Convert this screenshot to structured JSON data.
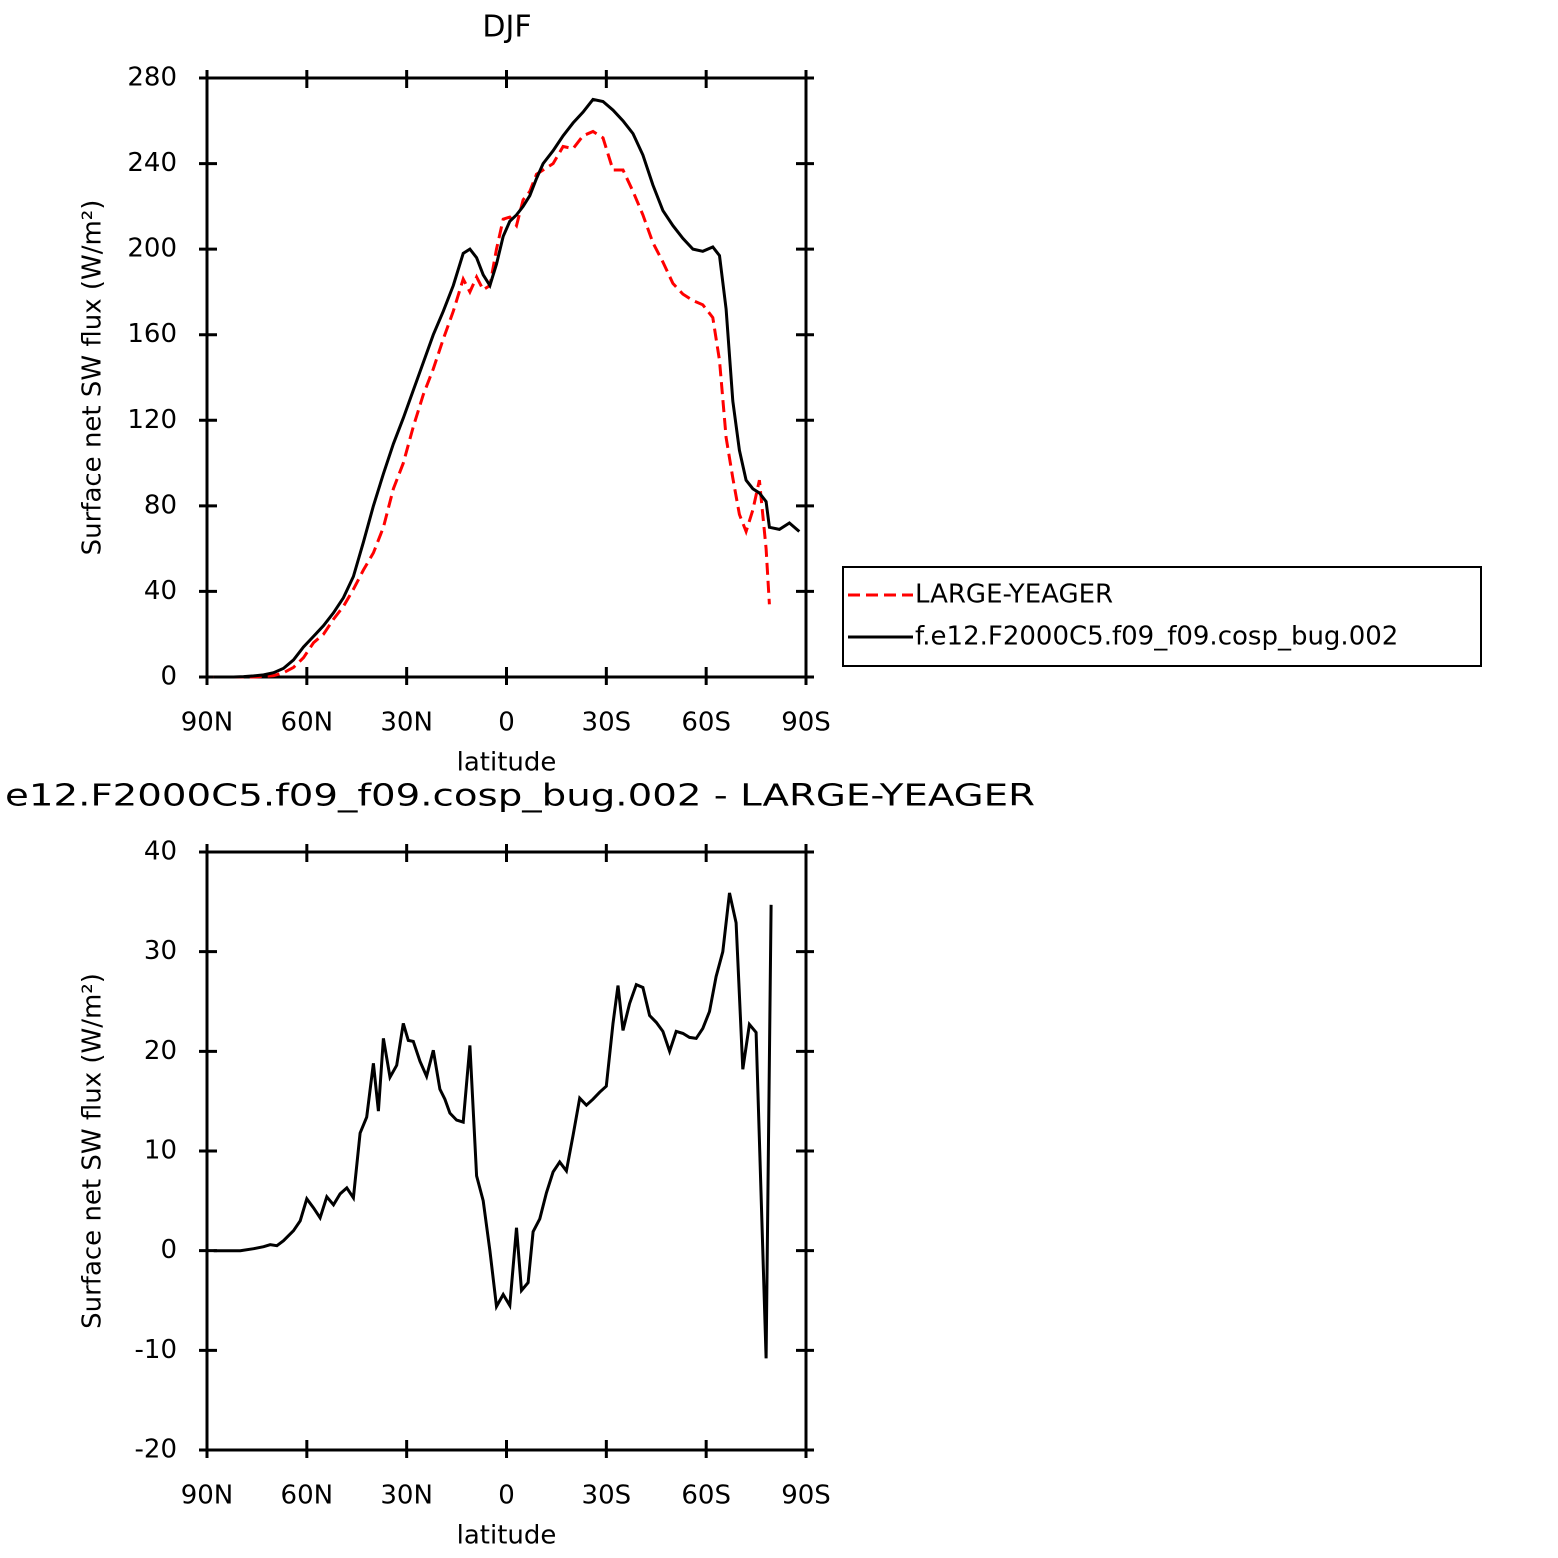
{
  "chart_data": [
    {
      "type": "line",
      "title": "DJF",
      "xlabel": "latitude",
      "ylabel": "Surface net SW flux (W/m²)",
      "x": [
        88,
        85,
        82,
        79,
        76,
        73,
        70,
        67,
        64,
        61,
        58,
        55,
        52,
        49,
        46,
        43,
        40,
        37,
        34,
        31,
        28,
        25,
        22,
        19,
        16,
        13,
        11,
        9,
        7,
        5,
        3,
        1,
        -1,
        -3,
        -5,
        -7,
        -9,
        -11,
        -14,
        -17,
        -20,
        -23,
        -26,
        -29,
        -32,
        -35,
        -38,
        -41,
        -44,
        -47,
        -50,
        -53,
        -56,
        -59,
        -62,
        -64,
        -66,
        -68,
        -70,
        -72,
        -74,
        -76,
        -78,
        -79,
        -82,
        -85,
        -88
      ],
      "series": [
        {
          "name": "LARGE-YEAGER",
          "color": "#ff0000",
          "style": "dashed",
          "values": [
            0,
            0,
            0,
            0,
            0,
            0.3,
            0.6,
            2,
            4.5,
            9,
            16,
            20,
            27,
            33,
            41,
            50,
            58,
            70,
            88,
            100,
            117,
            132,
            144,
            158,
            171,
            186,
            180,
            187,
            181,
            183,
            200,
            214,
            215,
            211,
            223,
            227,
            235,
            237,
            240,
            248,
            247,
            253,
            255,
            252,
            237,
            237,
            227,
            216,
            203,
            194,
            184,
            179,
            176,
            174,
            168,
            148,
            112,
            93,
            76,
            68,
            78,
            92,
            60,
            34,
            null,
            null,
            null
          ]
        },
        {
          "name": "f.e12.F2000C5.f09_f09.cosp_bug.002",
          "color": "#000000",
          "style": "solid",
          "values": [
            0,
            0,
            0,
            0.2,
            0.5,
            1,
            2,
            4,
            8,
            14,
            19,
            24,
            30,
            37,
            47,
            63,
            80,
            95,
            109,
            121,
            134,
            147,
            160,
            171,
            183,
            198,
            200,
            196,
            188,
            183,
            193,
            206,
            213,
            216,
            220,
            225,
            233,
            240,
            246,
            253,
            259,
            264,
            270,
            269,
            265,
            260,
            254,
            244,
            230,
            218,
            211,
            205,
            200,
            199,
            201,
            197,
            172,
            129,
            106,
            92,
            88,
            86,
            82,
            70,
            69,
            72,
            68
          ]
        }
      ],
      "xlim": [
        90,
        -90
      ],
      "xticks": [
        {
          "value": 90,
          "label": "90N"
        },
        {
          "value": 60,
          "label": "60N"
        },
        {
          "value": 30,
          "label": "30N"
        },
        0,
        {
          "value": -30,
          "label": "30S"
        },
        {
          "value": -60,
          "label": "60S"
        },
        {
          "value": -90,
          "label": "90S"
        }
      ],
      "ylim": [
        0,
        280
      ],
      "yticks": [
        0,
        40,
        80,
        120,
        160,
        200,
        240,
        280
      ],
      "legend": "right"
    },
    {
      "type": "line",
      "title": "e12.F2000C5.f09_f09.cosp_bug.002 - LARGE-YEAGER",
      "xlabel": "latitude",
      "ylabel": "Surface net SW flux (W/m²)",
      "x": [
        88,
        80,
        76,
        73,
        71,
        69,
        67,
        64,
        62,
        60,
        58,
        56,
        54,
        52,
        50,
        48,
        46,
        44,
        42,
        40,
        38.5,
        37,
        35,
        33,
        31,
        29.5,
        28,
        26,
        24,
        22,
        20,
        18.5,
        17,
        15,
        13,
        11,
        9,
        7,
        5,
        3,
        1,
        -1,
        -3,
        -4.5,
        -6.5,
        -8,
        -10,
        -12,
        -14,
        -16,
        -18,
        -20,
        -22,
        -24,
        -26,
        -28,
        -30,
        -32,
        -33.5,
        -35,
        -37,
        -39,
        -41,
        -43,
        -45,
        -47,
        -49,
        -51,
        -53,
        -55,
        -57,
        -59,
        -61,
        -63,
        -65,
        -67,
        -69,
        -71,
        -73,
        -75,
        -78,
        -79.5
      ],
      "color": "#000000",
      "values": [
        0,
        0,
        0.2,
        0.4,
        0.6,
        0.5,
        1,
        2,
        3,
        5.2,
        4.3,
        3.3,
        5.4,
        4.6,
        5.7,
        6.3,
        5.3,
        11.8,
        13.4,
        18.8,
        14,
        21.3,
        17.4,
        18.6,
        22.8,
        21.1,
        21,
        19,
        17.5,
        20.1,
        16.2,
        15.2,
        13.8,
        13.1,
        12.9,
        20.6,
        7.5,
        5,
        0,
        -5.6,
        -4.4,
        -5.5,
        2.3,
        -4,
        -3.2,
        1.9,
        3.2,
        5.8,
        7.9,
        8.9,
        8,
        11.6,
        15.3,
        14.6,
        15.2,
        15.9,
        16.5,
        22.8,
        26.6,
        22.1,
        24.8,
        26.7,
        26.4,
        23.6,
        22.9,
        22,
        20,
        22,
        21.8,
        21.4,
        21.3,
        22.3,
        24,
        27.5,
        30,
        35.9,
        32.9,
        18.2,
        22.7,
        21.9,
        -10.8,
        34.7
      ],
      "xlim": [
        90,
        -90
      ],
      "xticks": [
        {
          "value": 90,
          "label": "90N"
        },
        {
          "value": 60,
          "label": "60N"
        },
        {
          "value": 30,
          "label": "30N"
        },
        0,
        {
          "value": -30,
          "label": "30S"
        },
        {
          "value": -60,
          "label": "60S"
        },
        {
          "value": -90,
          "label": "90S"
        }
      ],
      "ylim": [
        -20,
        40
      ],
      "yticks": [
        -20,
        -10,
        0,
        10,
        20,
        30,
        40
      ]
    }
  ]
}
